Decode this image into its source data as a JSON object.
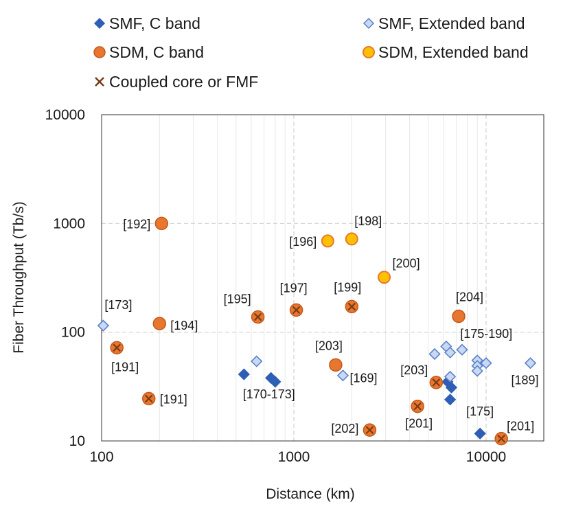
{
  "chart_data": {
    "type": "scatter",
    "xlabel": "Distance (km)",
    "ylabel": "Fiber Throughput (Tb/s)",
    "xscale": "log",
    "yscale": "log",
    "xlim": [
      100,
      20000
    ],
    "ylim": [
      10,
      10000
    ],
    "x_ticks": [
      "100",
      "1000",
      "10000"
    ],
    "y_ticks": [
      "10",
      "100",
      "1000",
      "10000"
    ],
    "grid": true,
    "legend_position": "top",
    "colors": {
      "smf_c": "#2e5fb5",
      "smf_ext": "#c9d9f3",
      "smf_ext_edge": "#5b82c8",
      "sdm_c": "#e7772e",
      "sdm_c_edge": "#c6561a",
      "sdm_ext": "#ffc000",
      "sdm_ext_edge": "#e7772e",
      "cross": "#7a3a14"
    },
    "series": [
      {
        "name": "SMF, C band",
        "marker": "diamond-filled",
        "points": [
          {
            "x": 550,
            "y": 41
          },
          {
            "x": 760,
            "y": 38
          },
          {
            "x": 800,
            "y": 35
          },
          {
            "x": 6300,
            "y": 35
          },
          {
            "x": 6600,
            "y": 31
          },
          {
            "x": 6500,
            "y": 24
          },
          {
            "x": 9300,
            "y": 11.7
          }
        ]
      },
      {
        "name": "SMF, Extended band",
        "marker": "diamond-open",
        "points": [
          {
            "x": 102,
            "y": 115
          },
          {
            "x": 640,
            "y": 54
          },
          {
            "x": 1800,
            "y": 40
          },
          {
            "x": 5400,
            "y": 63
          },
          {
            "x": 6200,
            "y": 74
          },
          {
            "x": 6500,
            "y": 65
          },
          {
            "x": 7500,
            "y": 69
          },
          {
            "x": 6500,
            "y": 39
          },
          {
            "x": 9000,
            "y": 55
          },
          {
            "x": 9000,
            "y": 49
          },
          {
            "x": 9000,
            "y": 44
          },
          {
            "x": 10000,
            "y": 52
          },
          {
            "x": 17000,
            "y": 52
          }
        ]
      },
      {
        "name": "SDM, C band",
        "marker": "circle-filled",
        "points": [
          {
            "x": 205,
            "y": 1000
          },
          {
            "x": 200,
            "y": 120
          },
          {
            "x": 1650,
            "y": 50
          },
          {
            "x": 7200,
            "y": 140
          }
        ]
      },
      {
        "name": "SDM, Extended band",
        "marker": "circle-yellow",
        "points": [
          {
            "x": 1500,
            "y": 690
          },
          {
            "x": 2000,
            "y": 720
          },
          {
            "x": 2950,
            "y": 320
          }
        ]
      },
      {
        "name": "Coupled core or FMF",
        "marker": "circle-cross",
        "points": [
          {
            "x": 120,
            "y": 72
          },
          {
            "x": 176,
            "y": 24.5
          },
          {
            "x": 650,
            "y": 138
          },
          {
            "x": 1030,
            "y": 160
          },
          {
            "x": 2000,
            "y": 172
          },
          {
            "x": 2480,
            "y": 12.6
          },
          {
            "x": 4400,
            "y": 20.8
          },
          {
            "x": 5500,
            "y": 34.5
          },
          {
            "x": 12000,
            "y": 10.5
          }
        ]
      }
    ],
    "annotations": [
      {
        "text": "[192]",
        "x": 205,
        "y": 1000,
        "anchor": "end",
        "dx": -16,
        "dy": 7
      },
      {
        "text": "[173]",
        "x": 102,
        "y": 115,
        "anchor": "start",
        "dx": 2,
        "dy": -24
      },
      {
        "text": "[194]",
        "x": 200,
        "y": 120,
        "anchor": "start",
        "dx": 16,
        "dy": 9
      },
      {
        "text": "[191]",
        "x": 120,
        "y": 72,
        "anchor": "start",
        "dx": -8,
        "dy": 34
      },
      {
        "text": "[191]",
        "x": 176,
        "y": 24.5,
        "anchor": "start",
        "dx": 16,
        "dy": 7
      },
      {
        "text": "[195]",
        "x": 650,
        "y": 138,
        "anchor": "end",
        "dx": -10,
        "dy": -20
      },
      {
        "text": "[197]",
        "x": 1030,
        "y": 160,
        "anchor": "middle",
        "dx": -4,
        "dy": -26
      },
      {
        "text": "[196]",
        "x": 1500,
        "y": 690,
        "anchor": "end",
        "dx": -16,
        "dy": 7
      },
      {
        "text": "[198]",
        "x": 2000,
        "y": 720,
        "anchor": "middle",
        "dx": 24,
        "dy": -20
      },
      {
        "text": "[200]",
        "x": 2950,
        "y": 320,
        "anchor": "start",
        "dx": 12,
        "dy": -14
      },
      {
        "text": "[199]",
        "x": 2000,
        "y": 172,
        "anchor": "middle",
        "dx": -6,
        "dy": -22
      },
      {
        "text": "[204]",
        "x": 7200,
        "y": 140,
        "anchor": "middle",
        "dx": 16,
        "dy": -22
      },
      {
        "text": "[175-190]",
        "x": 9000,
        "y": 69,
        "anchor": "start",
        "dx": -25,
        "dy": -17
      },
      {
        "text": "[170-173]",
        "x": 640,
        "y": 54,
        "anchor": "start",
        "dx": -20,
        "dy": 54
      },
      {
        "text": "[203]",
        "x": 1650,
        "y": 50,
        "anchor": "middle",
        "dx": -10,
        "dy": -22
      },
      {
        "text": "[169]",
        "x": 1800,
        "y": 40,
        "anchor": "start",
        "dx": 10,
        "dy": 10
      },
      {
        "text": "[203]",
        "x": 5500,
        "y": 34.5,
        "anchor": "end",
        "dx": -12,
        "dy": -12
      },
      {
        "text": "[189]",
        "x": 17000,
        "y": 52,
        "anchor": "middle",
        "dx": -8,
        "dy": 31
      },
      {
        "text": "[202]",
        "x": 2480,
        "y": 12.6,
        "anchor": "end",
        "dx": -16,
        "dy": 4
      },
      {
        "text": "[201]",
        "x": 4400,
        "y": 20.8,
        "anchor": "middle",
        "dx": 2,
        "dy": 31
      },
      {
        "text": "[175]",
        "x": 9300,
        "y": 11.7,
        "anchor": "middle",
        "dx": 0,
        "dy": -26
      },
      {
        "text": "[201]",
        "x": 12000,
        "y": 10.5,
        "anchor": "start",
        "dx": 8,
        "dy": -12
      }
    ]
  }
}
